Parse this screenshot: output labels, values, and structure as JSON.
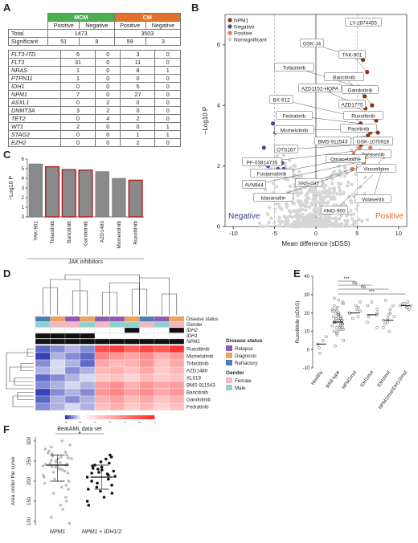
{
  "panels": {
    "A": "A",
    "B": "B",
    "C": "C",
    "D": "D",
    "E": "E",
    "F": "F"
  },
  "tableA": {
    "mcm": "MCM",
    "cm": "CM",
    "positive": "Positive",
    "negative": "Negative",
    "total_label": "Total",
    "significant_label": "Significant",
    "total_mcm": "1473",
    "total_cm": "3503",
    "significant": [
      "51",
      "8",
      "59",
      "3"
    ],
    "genes": [
      {
        "g": "FLT3-ITD",
        "v": [
          "6",
          "0",
          "3",
          "0"
        ]
      },
      {
        "g": "FLT3",
        "v": [
          "31",
          "0",
          "11",
          "0"
        ]
      },
      {
        "g": "NRAS",
        "v": [
          "1",
          "0",
          "8",
          "1"
        ]
      },
      {
        "g": "PTPN11",
        "v": [
          "1",
          "0",
          "0",
          "0"
        ]
      },
      {
        "g": "IDH1",
        "v": [
          "0",
          "0",
          "5",
          "0"
        ]
      },
      {
        "g": "NPM1",
        "v": [
          "7",
          "0",
          "27",
          "0"
        ]
      },
      {
        "g": "ASXL1",
        "v": [
          "0",
          "2",
          "0",
          "0"
        ]
      },
      {
        "g": "DNMT3A",
        "v": [
          "3",
          "2",
          "0",
          "0"
        ]
      },
      {
        "g": "TET2",
        "v": [
          "0",
          "4",
          "2",
          "0"
        ]
      },
      {
        "g": "WT1",
        "v": [
          "2",
          "0",
          "0",
          "1"
        ]
      },
      {
        "g": "STAG2",
        "v": [
          "0",
          "0",
          "1",
          "1"
        ]
      },
      {
        "g": "EZH2",
        "v": [
          "0",
          "0",
          "2",
          "0"
        ]
      }
    ]
  },
  "chart_data": [
    {
      "id": "B",
      "type": "scatter",
      "xlabel": "Mean difference (sDSS)",
      "ylabel": "−Log10 P",
      "xlim": [
        -11,
        11
      ],
      "ylim": [
        0,
        7
      ],
      "xticks": [
        "-10",
        "-5",
        "0",
        "5",
        "10"
      ],
      "yticks": [
        "0",
        "2",
        "4",
        "6"
      ],
      "legend": [
        "NPM1",
        "Negative",
        "Positive",
        "Nonsignificant"
      ],
      "colors": {
        "NPM1": "#8b2e14",
        "Negative": "#4a4aa0",
        "Positive": "#e8724a",
        "Nonsignificant": "#d6d6d6"
      },
      "region_labels": {
        "negative": "Negative",
        "positive": "Positive"
      },
      "labeled_points": [
        {
          "label": "LY-2874455",
          "x": 6.3,
          "y": 6.7
        },
        {
          "label": "GSK-J4",
          "x": 5.7,
          "y": 5.5
        },
        {
          "label": "TAK-901",
          "x": 6.2,
          "y": 5.1
        },
        {
          "label": "Tofacitinib",
          "x": 5.2,
          "y": 4.6
        },
        {
          "label": "Baricitinib",
          "x": 5.9,
          "y": 4.3
        },
        {
          "label": "Gandotinib",
          "x": 6.8,
          "y": 4.0
        },
        {
          "label": "AZD1152-HQPA",
          "x": 6.0,
          "y": 3.9
        },
        {
          "label": "BX-912",
          "x": 5.1,
          "y": 3.6
        },
        {
          "label": "AZD1775",
          "x": 6.4,
          "y": 3.7
        },
        {
          "label": "Ruxolitinib",
          "x": 7.3,
          "y": 3.5
        },
        {
          "label": "Fedratinib",
          "x": 5.4,
          "y": 3.4
        },
        {
          "label": "Momelotinib",
          "x": 5.8,
          "y": 3.2
        },
        {
          "label": "Pacritinib",
          "x": 7.5,
          "y": 3.1
        },
        {
          "label": "BMS-911543",
          "x": 6.3,
          "y": 3.0
        },
        {
          "label": "GSK-1070916",
          "x": 7.6,
          "y": 2.9
        },
        {
          "label": "OTS167",
          "x": 5.5,
          "y": 2.7
        },
        {
          "label": "Tozasertib",
          "x": 7.9,
          "y": 2.6
        },
        {
          "label": "PF-03814735",
          "x": 5.0,
          "y": 2.5
        },
        {
          "label": "Omacetaxine",
          "x": 6.7,
          "y": 2.4
        },
        {
          "label": "Fostamatinib",
          "x": 5.3,
          "y": 2.3
        },
        {
          "label": "Vinorelbine",
          "x": 7.9,
          "y": 2.2
        },
        {
          "label": "AVN944",
          "x": 4.8,
          "y": 2.1
        },
        {
          "label": "SNS-032",
          "x": 5.6,
          "y": 2.0
        },
        {
          "label": "Idasanutlin",
          "x": 5.1,
          "y": 1.9
        },
        {
          "label": "Volasertib",
          "x": 8.0,
          "y": 1.9
        },
        {
          "label": "AMG-900",
          "x": 6.9,
          "y": 1.7
        }
      ],
      "negative_points": [
        {
          "x": -5.2,
          "y": 3.4
        },
        {
          "x": -4.9,
          "y": 3.1
        },
        {
          "x": -6.3,
          "y": 2.6
        },
        {
          "x": -5.0,
          "y": 2.2
        },
        {
          "x": -4.1,
          "y": 2.1
        },
        {
          "x": -5.8,
          "y": 2.0
        },
        {
          "x": -4.6,
          "y": 1.9
        },
        {
          "x": -3.9,
          "y": 1.9
        }
      ],
      "positive_points": [
        {
          "x": 4.6,
          "y": 2.4
        },
        {
          "x": 4.9,
          "y": 2.9
        },
        {
          "x": 6.6,
          "y": 2.6
        },
        {
          "x": 7.1,
          "y": 2.8
        },
        {
          "x": 5.3,
          "y": 2.6
        },
        {
          "x": 6.1,
          "y": 2.3
        },
        {
          "x": 4.4,
          "y": 1.9
        },
        {
          "x": 7.3,
          "y": 2.0
        },
        {
          "x": 6.5,
          "y": 1.9
        },
        {
          "x": 8.2,
          "y": 2.3
        },
        {
          "x": 5.8,
          "y": 2.1
        },
        {
          "x": 7.0,
          "y": 2.4
        }
      ],
      "npm1_points": [
        {
          "x": 6.3,
          "y": 6.7
        },
        {
          "x": 5.7,
          "y": 5.5
        },
        {
          "x": 6.2,
          "y": 5.1
        },
        {
          "x": 5.2,
          "y": 4.6
        },
        {
          "x": 5.9,
          "y": 4.3
        },
        {
          "x": 6.8,
          "y": 4.0
        },
        {
          "x": 6.0,
          "y": 3.9
        },
        {
          "x": 5.1,
          "y": 3.6
        },
        {
          "x": 6.4,
          "y": 3.7
        },
        {
          "x": 7.3,
          "y": 3.5
        },
        {
          "x": 5.4,
          "y": 3.4
        },
        {
          "x": 5.8,
          "y": 3.2
        },
        {
          "x": 7.5,
          "y": 3.1
        },
        {
          "x": 6.3,
          "y": 3.0
        },
        {
          "x": 5.5,
          "y": 2.7
        },
        {
          "x": 7.6,
          "y": 2.9
        },
        {
          "x": 6.0,
          "y": 2.8
        },
        {
          "x": 5.6,
          "y": 3.3
        },
        {
          "x": 6.9,
          "y": 3.3
        },
        {
          "x": 6.6,
          "y": 3.1
        }
      ]
    },
    {
      "id": "C",
      "type": "bar",
      "ylabel": "−Log10 P",
      "xlabel": "JAK inhibitors",
      "ylim": [
        0,
        6
      ],
      "yticks": [
        "0",
        "1",
        "2",
        "3",
        "4",
        "5",
        "6"
      ],
      "categories": [
        "TAK-901",
        "Tofacitinib",
        "Baricitinib",
        "Gandotinib",
        "AZD1480",
        "Momelotinib",
        "Ruxolitinib"
      ],
      "values": [
        5.5,
        5.2,
        4.9,
        4.85,
        4.7,
        4.0,
        3.8
      ],
      "highlight": [
        false,
        true,
        true,
        true,
        false,
        false,
        true
      ],
      "colors": {
        "fill": "#8a8a8a",
        "highlight_edge": "#b22020"
      }
    },
    {
      "id": "D",
      "type": "heatmap",
      "row_labels": [
        "Ruxolitinib",
        "Momelotinib",
        "Tofacitinib",
        "AZD1480",
        "XL019",
        "BMS-911543",
        "Baricitinib",
        "Gandotinib",
        "Fedratinib"
      ],
      "annotation_labels": [
        "Disease status",
        "Gender",
        "IDH2",
        "IDH1",
        "NPM1"
      ],
      "legend_disease_title": "Disease status",
      "legend_disease": [
        {
          "name": "Relapse",
          "color": "#8e5bb3"
        },
        {
          "name": "Diagnosis",
          "color": "#f0a15a"
        },
        {
          "name": "Refractory",
          "color": "#4a7fb5"
        }
      ],
      "legend_gender_title": "Gender",
      "legend_gender": [
        {
          "name": "Female",
          "color": "#f4b6c2"
        },
        {
          "name": "Male",
          "color": "#8fd0d0"
        }
      ],
      "colorbar_label": "sDSS",
      "colorbar_ticks": [
        "-5",
        "0",
        "5",
        "10",
        "15",
        "20",
        "25"
      ],
      "disease_row": [
        2,
        1,
        0,
        1,
        0,
        0,
        1,
        2,
        0,
        1
      ],
      "gender_row": [
        1,
        0,
        0,
        1,
        0,
        1,
        1,
        0,
        1,
        0
      ],
      "idh2_row": [
        0,
        0,
        0,
        0,
        0,
        0,
        1,
        0,
        0,
        1
      ],
      "idh1_row": [
        1,
        1,
        1,
        1,
        0,
        0,
        0,
        0,
        0,
        0
      ],
      "npm1_row": [
        1,
        1,
        1,
        1,
        1,
        1,
        1,
        1,
        1,
        1
      ],
      "matrix": [
        [
          -4,
          -3,
          -2,
          -3,
          20,
          22,
          18,
          21,
          19,
          23
        ],
        [
          -5,
          -2,
          -3,
          -4,
          14,
          12,
          10,
          13,
          9,
          11
        ],
        [
          -3,
          -1,
          -2,
          -4,
          10,
          8,
          9,
          12,
          7,
          10
        ],
        [
          -2,
          -1,
          -3,
          -2,
          8,
          9,
          7,
          10,
          6,
          8
        ],
        [
          -4,
          -3,
          -2,
          -1,
          6,
          7,
          5,
          8,
          6,
          7
        ],
        [
          -3,
          -2,
          -1,
          -2,
          11,
          13,
          9,
          12,
          10,
          11
        ],
        [
          -5,
          -3,
          -2,
          -3,
          12,
          14,
          11,
          13,
          10,
          12
        ],
        [
          -4,
          -2,
          -3,
          -2,
          9,
          11,
          8,
          10,
          7,
          9
        ],
        [
          -3,
          -2,
          -1,
          -2,
          7,
          9,
          6,
          8,
          5,
          7
        ]
      ]
    },
    {
      "id": "E",
      "type": "scatter",
      "ylabel": "Ruxolitinib (sDSS)",
      "ylim": [
        -10,
        40
      ],
      "yticks": [
        "-10",
        "0",
        "10",
        "20",
        "30",
        "40"
      ],
      "categories": [
        "Healthy",
        "Wild-type",
        "NPM1mut",
        "IDH1mut",
        "IDH2mut",
        "NPM1mut/IDH1/2mut"
      ],
      "medians": [
        3,
        15,
        20,
        19,
        16,
        24
      ],
      "sig_brackets": [
        "***",
        "ns",
        "ns",
        "***"
      ],
      "points": [
        [
          1,
          3,
          7,
          -2,
          5
        ],
        [
          2,
          5,
          8,
          9,
          10,
          11,
          11,
          12,
          12,
          13,
          13,
          14,
          14,
          14,
          15,
          15,
          15,
          16,
          16,
          16,
          17,
          17,
          17,
          18,
          18,
          19,
          19,
          20,
          20,
          21,
          21,
          22,
          22,
          23,
          24,
          25,
          26,
          27,
          28,
          10,
          12,
          15,
          17,
          19
        ],
        [
          17,
          18,
          20,
          20,
          21,
          22,
          23,
          24,
          26
        ],
        [
          12,
          15,
          18,
          19,
          20,
          22,
          24,
          26
        ],
        [
          10,
          12,
          14,
          15,
          16,
          17,
          18,
          19,
          20,
          22,
          24,
          27
        ],
        [
          22,
          23,
          23,
          24,
          24,
          25,
          25,
          26
        ]
      ]
    },
    {
      "id": "F",
      "type": "scatter",
      "title": "BeatAML data set",
      "sig": "*",
      "ylabel": "Area under the curve",
      "ylim": [
        90,
        310
      ],
      "yticks": [
        "100",
        "150",
        "200",
        "250",
        "300"
      ],
      "categories": [
        "NPM1",
        "NPM1 + IDH1/2"
      ],
      "medians": [
        240,
        210
      ],
      "ranges": [
        [
          200,
          265
        ],
        [
          180,
          240
        ]
      ],
      "points": [
        [
          300,
          290,
          285,
          280,
          275,
          272,
          270,
          268,
          265,
          262,
          260,
          258,
          256,
          255,
          252,
          250,
          248,
          246,
          245,
          243,
          242,
          240,
          238,
          236,
          235,
          232,
          230,
          228,
          225,
          222,
          220,
          215,
          210,
          205,
          200,
          195,
          190,
          185,
          180,
          170,
          160,
          150,
          140,
          130,
          110,
          95
        ],
        [
          265,
          260,
          255,
          248,
          245,
          240,
          238,
          235,
          232,
          230,
          228,
          225,
          222,
          220,
          218,
          215,
          212,
          210,
          205,
          200,
          195,
          190,
          185,
          180,
          175,
          170,
          160,
          150,
          140
        ]
      ]
    }
  ]
}
